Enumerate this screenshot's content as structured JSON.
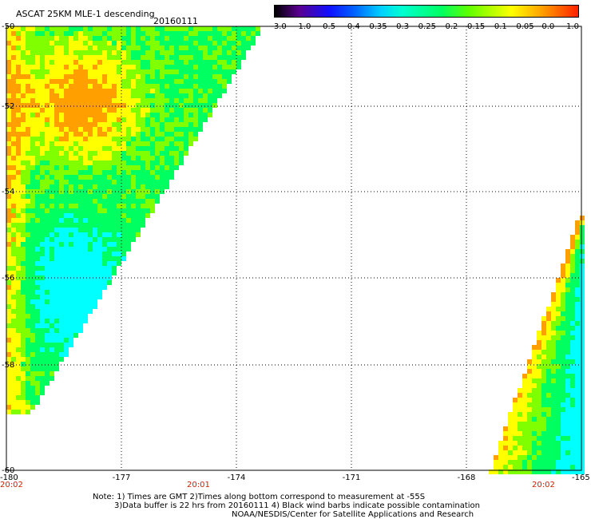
{
  "header": {
    "title": "ASCAT 25KM MLE-1 descending",
    "date": "20160111"
  },
  "colorbar": {
    "labels": [
      "-3.0",
      "-1.0",
      "-0.5",
      "-0.4",
      "-0.35",
      "-0.3",
      "-0.25",
      "-0.2",
      "-0.15",
      "-0.1",
      "-0.05",
      "0.0",
      "1.0"
    ]
  },
  "map": {
    "lat_labels": [
      "-50",
      "-52",
      "-54",
      "-56",
      "-58",
      "-60"
    ],
    "lon_labels": [
      "-180",
      "-177",
      "-174",
      "-171",
      "-168",
      "-165"
    ],
    "time_labels": [
      {
        "text": "20:02",
        "position": "-180"
      },
      {
        "text": "20:01",
        "position": "-175"
      },
      {
        "text": "20:02",
        "position": "-166"
      }
    ],
    "swath_colors": {
      "cyan": "#00ffff",
      "green": "#00ff60",
      "lime": "#80ff00",
      "yellow": "#ffff00",
      "orange": "#ffa000"
    }
  },
  "footer": {
    "line1": "Note: 1) Times are GMT 2)Times along bottom correspond to measurement at -55S",
    "line2": "3)Data buffer is 22 hrs from 20160111 4) Black wind barbs indicate possible contamination",
    "line3": "NOAA/NESDIS/Center for Satellite Applications and Research"
  }
}
